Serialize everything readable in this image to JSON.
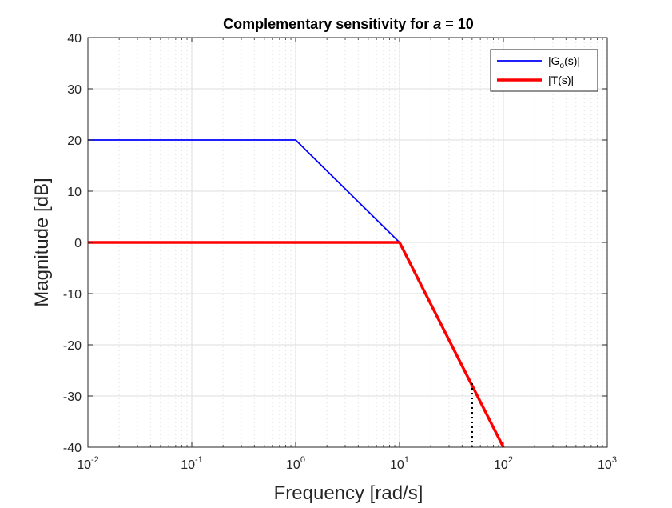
{
  "chart_data": {
    "type": "line",
    "title": {
      "prefix": "Complementary sensitivity for ",
      "variable": "a",
      "suffix": " = 10"
    },
    "xlabel": "Frequency [rad/s]",
    "ylabel": "Magnitude [dB]",
    "xscale": "log",
    "xlim": [
      0.01,
      1000
    ],
    "ylim": [
      -40,
      40
    ],
    "grid": true,
    "minor_grid": true,
    "xticks": [
      {
        "value": 0.01,
        "base": "10",
        "exp": "-2"
      },
      {
        "value": 0.1,
        "base": "10",
        "exp": "-1"
      },
      {
        "value": 1,
        "base": "10",
        "exp": "0"
      },
      {
        "value": 10,
        "base": "10",
        "exp": "1"
      },
      {
        "value": 100,
        "base": "10",
        "exp": "2"
      },
      {
        "value": 1000,
        "base": "10",
        "exp": "3"
      }
    ],
    "yticks": [
      {
        "value": 40,
        "label": "40"
      },
      {
        "value": 30,
        "label": "30"
      },
      {
        "value": 20,
        "label": "20"
      },
      {
        "value": 10,
        "label": "10"
      },
      {
        "value": 0,
        "label": "0"
      },
      {
        "value": -10,
        "label": "-10"
      },
      {
        "value": -20,
        "label": "-20"
      },
      {
        "value": -30,
        "label": "-30"
      },
      {
        "value": -40,
        "label": "-40"
      }
    ],
    "legend_position": "top-right",
    "series": [
      {
        "name": "|Go(s)|",
        "legend": {
          "pre": "|G",
          "sub": "o",
          "post": "(s)|"
        },
        "color": "#0000ff",
        "style": "thin",
        "x": [
          0.01,
          1,
          10,
          100
        ],
        "y": [
          20,
          20,
          0,
          -40
        ]
      },
      {
        "name": "|T(s)|",
        "legend": {
          "pre": "|T(s)|",
          "sub": "",
          "post": ""
        },
        "color": "#ff0000",
        "style": "thick",
        "x": [
          0.01,
          10,
          100
        ],
        "y": [
          0,
          0,
          -40
        ]
      }
    ],
    "annotations": [
      {
        "type": "vertical-dotted-line",
        "x": 50,
        "y_from": -40,
        "y_to": -27,
        "color": "#000000"
      }
    ]
  }
}
